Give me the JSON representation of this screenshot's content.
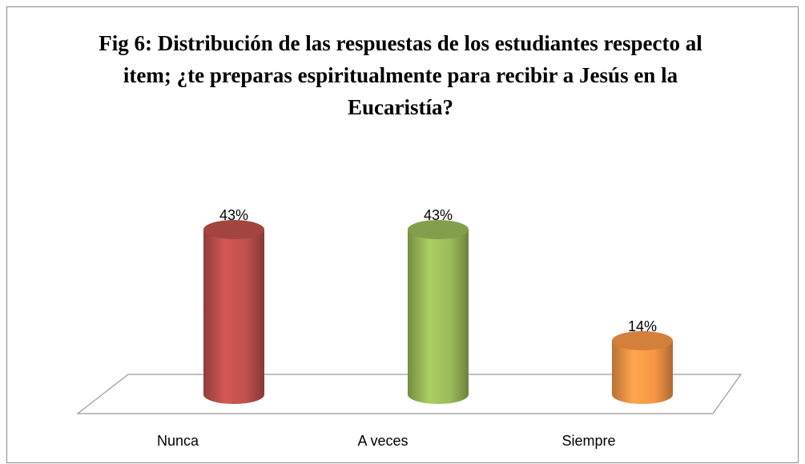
{
  "chart_data": {
    "type": "bar3d",
    "title": "Fig 6: Distribución de las respuestas de los estudiantes respecto al item; ¿te preparas espiritualmente para recibir a Jesús en la Eucaristía?",
    "categories": [
      "Nunca",
      "A veces",
      "Siempre"
    ],
    "values": [
      43,
      43,
      14
    ],
    "value_labels": [
      "43%",
      "43%",
      "14%"
    ],
    "colors": [
      "#c0504d",
      "#9bbb59",
      "#f79646"
    ]
  }
}
